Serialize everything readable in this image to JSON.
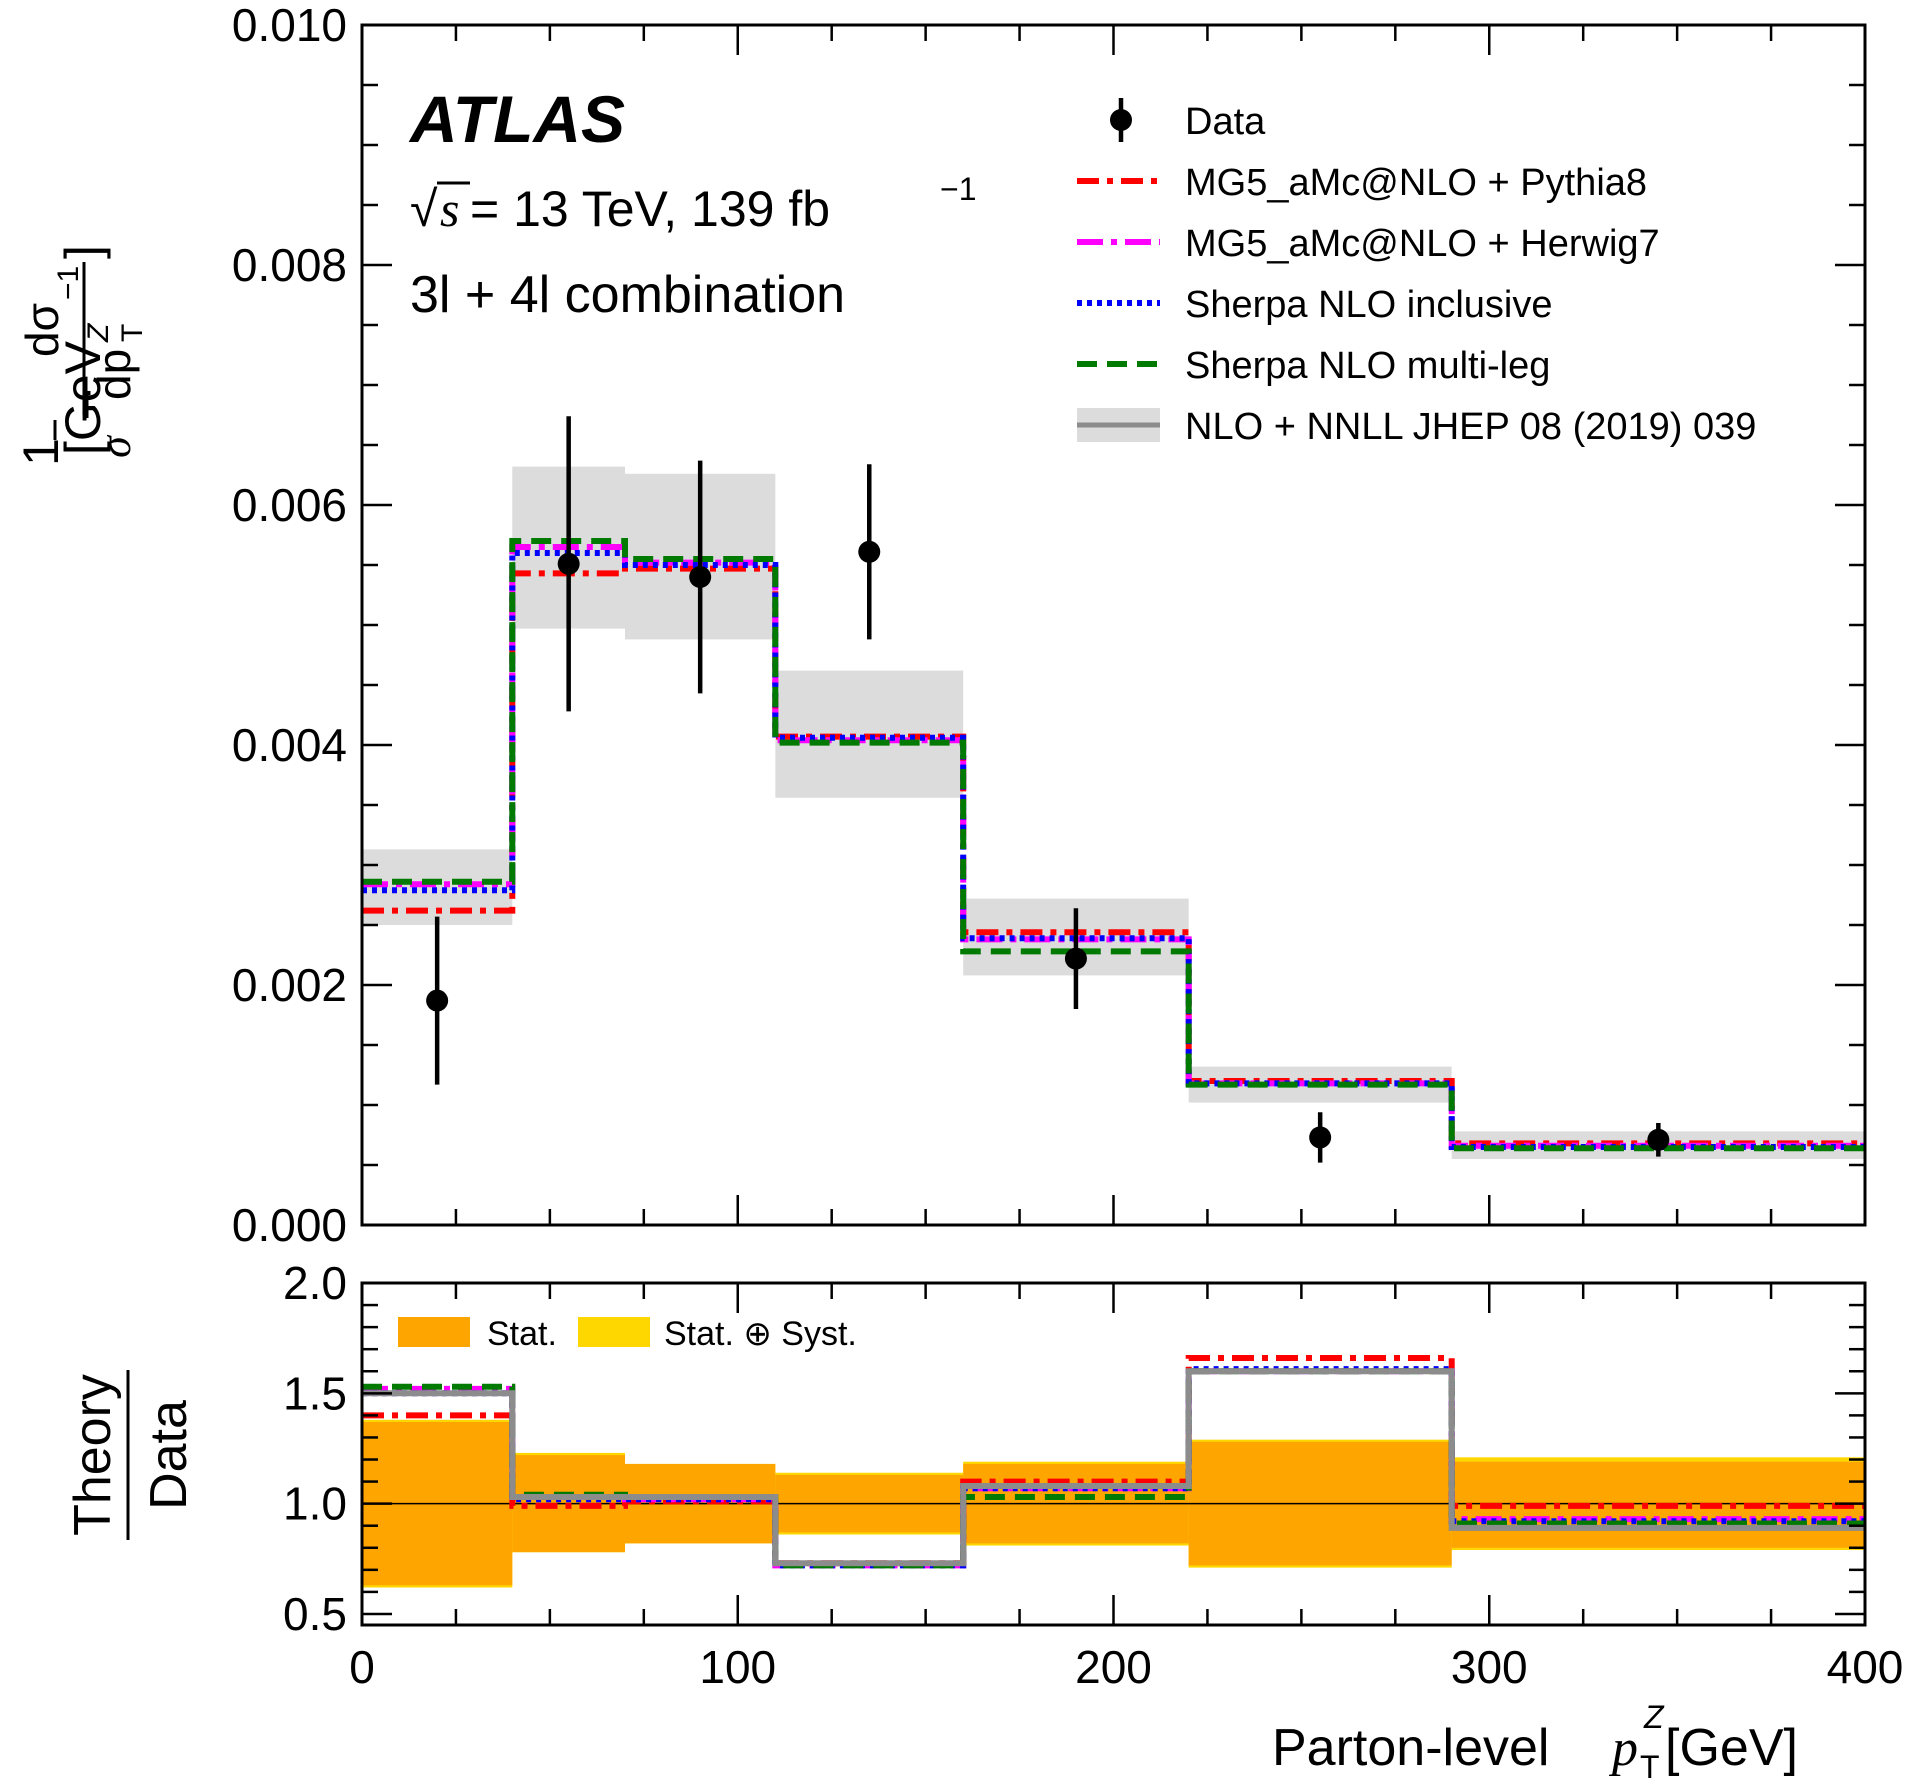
{
  "figure": {
    "experiment_label": "ATLAS",
    "energy_prefix": "√",
    "energy_s": "s",
    "energy_text": " = 13 TeV, 139 fb",
    "lumi_exp": "−1",
    "channel_label": "3l + 4l combination"
  },
  "chart_data": [
    {
      "type": "line",
      "panel": "main",
      "ylabel_parts": {
        "one": "1",
        "sigma": "σ",
        "dsigma": "dσ",
        "dpt": "dp",
        "pt_sub": "T",
        "pt_sup": "Z",
        "unit": "[GeV",
        "unit_exp": "−1",
        "close": "]"
      },
      "xlim": [
        0,
        400
      ],
      "ylim": [
        0,
        0.01
      ],
      "yticks": [
        0.0,
        0.002,
        0.004,
        0.006,
        0.008,
        0.01
      ],
      "ytick_labels": [
        "0.000",
        "0.002",
        "0.004",
        "0.006",
        "0.008",
        "0.010"
      ],
      "bin_edges": [
        0,
        40,
        70,
        110,
        160,
        220,
        290,
        400
      ],
      "legend": [
        {
          "key": "data",
          "label": "Data"
        },
        {
          "key": "mg5_pythia",
          "label": "MG5_aMc@NLO + Pythia8"
        },
        {
          "key": "mg5_herwig",
          "label": "MG5_aMc@NLO + Herwig7"
        },
        {
          "key": "sherpa_incl",
          "label": "Sherpa NLO inclusive"
        },
        {
          "key": "sherpa_ml",
          "label": "Sherpa NLO multi-leg"
        },
        {
          "key": "nnll",
          "label": "NLO + NNLL JHEP 08 (2019) 039"
        }
      ],
      "data_points": {
        "x": [
          20,
          55,
          90,
          135,
          190,
          255,
          345
        ],
        "y": [
          0.00187,
          0.00551,
          0.0054,
          0.00561,
          0.00222,
          0.00073,
          0.00071
        ],
        "err": [
          0.0007,
          0.00123,
          0.00097,
          0.00073,
          0.00042,
          0.00021,
          0.00014
        ]
      },
      "nnll_band": {
        "low": [
          0.0025,
          0.00497,
          0.00488,
          0.00356,
          0.00208,
          0.00102,
          0.00055
        ],
        "high": [
          0.00313,
          0.00632,
          0.00626,
          0.00462,
          0.00272,
          0.00132,
          0.00078
        ]
      },
      "series": [
        {
          "key": "nnll",
          "name": "NLO + NNLL JHEP 08 (2019) 039",
          "color": "#8c8c8c",
          "values": [
            0.00282,
            0.00565,
            0.00557,
            0.00409,
            0.0024,
            0.00117,
            0.00066
          ]
        },
        {
          "key": "mg5_pythia",
          "name": "MG5_aMc@NLO + Pythia8",
          "color": "#ff0000",
          "values": [
            0.00262,
            0.00543,
            0.00547,
            0.00407,
            0.00244,
            0.0012,
            0.00068
          ]
        },
        {
          "key": "mg5_herwig",
          "name": "MG5_aMc@NLO + Herwig7",
          "color": "#ff00ff",
          "values": [
            0.00284,
            0.00565,
            0.00552,
            0.00404,
            0.00238,
            0.00118,
            0.00066
          ]
        },
        {
          "key": "sherpa_incl",
          "name": "Sherpa NLO inclusive",
          "color": "#0000ff",
          "values": [
            0.00279,
            0.0056,
            0.0055,
            0.00406,
            0.00239,
            0.00118,
            0.00065
          ]
        },
        {
          "key": "sherpa_ml",
          "name": "Sherpa NLO multi-leg",
          "color": "#007a00",
          "values": [
            0.00286,
            0.0057,
            0.00555,
            0.00402,
            0.00228,
            0.00117,
            0.00064
          ]
        }
      ]
    },
    {
      "type": "line",
      "panel": "ratio",
      "ylabel_num": "Theory",
      "ylabel_den": "Data",
      "xlabel_prefix": "Parton-level ",
      "xlabel_p": "p",
      "xlabel_sub": "T",
      "xlabel_sup": "Z",
      "xlabel_unit": " [GeV]",
      "xlim": [
        0,
        400
      ],
      "ylim": [
        0.45,
        2.0
      ],
      "xticks": [
        0,
        100,
        200,
        300,
        400
      ],
      "xtick_labels": [
        "0",
        "100",
        "200",
        "300",
        "400"
      ],
      "yticks": [
        0.5,
        1.0,
        1.5,
        2.0
      ],
      "ytick_labels": [
        "0.5",
        "1.0",
        "1.5",
        "2.0"
      ],
      "legend": [
        {
          "key": "stat",
          "label": "Stat.",
          "color": "#ffa500"
        },
        {
          "key": "statsyst",
          "label": "Stat. ⊕ Syst.",
          "color": "#ffd700"
        }
      ],
      "stat_band": {
        "low": [
          0.63,
          0.78,
          0.82,
          0.87,
          0.82,
          0.72,
          0.8
        ],
        "high": [
          1.37,
          1.22,
          1.18,
          1.13,
          1.18,
          1.28,
          1.19
        ]
      },
      "total_band": {
        "low": [
          0.62,
          0.78,
          0.82,
          0.86,
          0.81,
          0.71,
          0.79
        ],
        "high": [
          1.38,
          1.23,
          1.18,
          1.14,
          1.19,
          1.29,
          1.21
        ]
      },
      "series": [
        {
          "key": "mg5_pythia",
          "name": "MG5_aMc@NLO + Pythia8",
          "color": "#ff0000",
          "values": [
            1.4,
            0.99,
            1.01,
            0.73,
            1.1,
            1.66,
            0.99
          ]
        },
        {
          "key": "mg5_herwig",
          "name": "MG5_aMc@NLO + Herwig7",
          "color": "#ff00ff",
          "values": [
            1.52,
            1.03,
            1.02,
            0.72,
            1.07,
            1.6,
            0.93
          ]
        },
        {
          "key": "sherpa_incl",
          "name": "Sherpa NLO inclusive",
          "color": "#0000ff",
          "values": [
            1.5,
            1.02,
            1.02,
            0.72,
            1.07,
            1.61,
            0.92
          ]
        },
        {
          "key": "sherpa_ml",
          "name": "Sherpa NLO multi-leg",
          "color": "#007a00",
          "values": [
            1.53,
            1.04,
            1.03,
            0.72,
            1.03,
            1.6,
            0.91
          ]
        },
        {
          "key": "nnll",
          "name": "NLO + NNLL JHEP 08 (2019) 039",
          "color": "#8c8c8c",
          "values": [
            1.5,
            1.03,
            1.03,
            0.73,
            1.08,
            1.6,
            0.89
          ]
        }
      ]
    }
  ]
}
